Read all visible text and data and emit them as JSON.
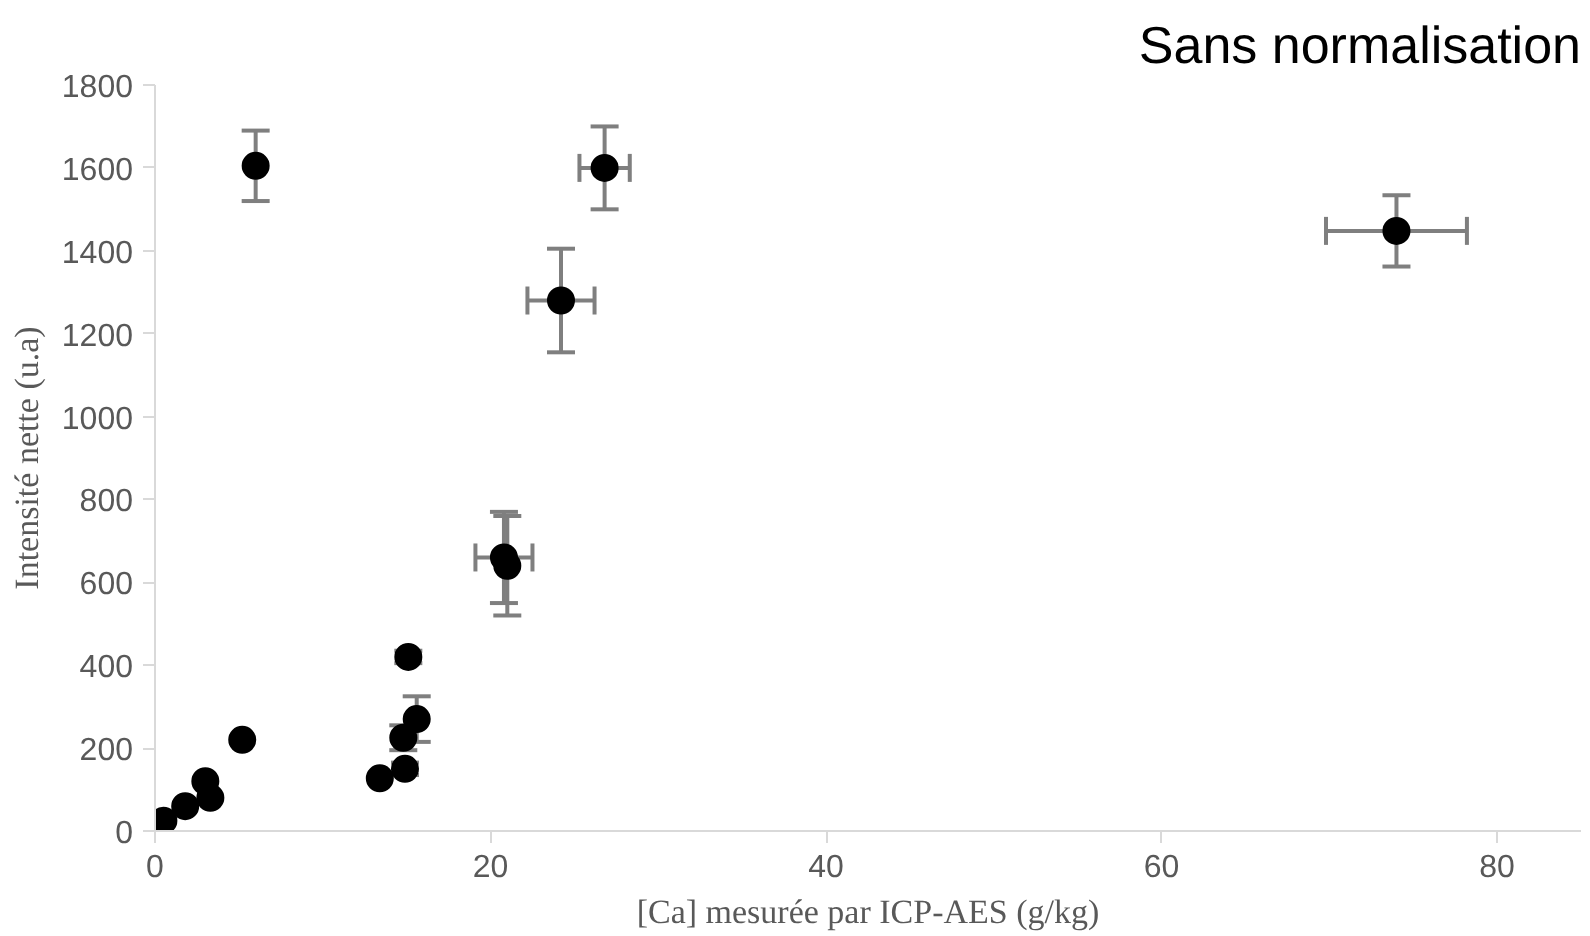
{
  "chart_data": {
    "type": "scatter",
    "title": "Sans normalisation",
    "xlabel": "[Ca] mesurée par ICP-AES (g/kg)",
    "ylabel": "Intensité nette (u.a)",
    "x": [
      0.5,
      1.8,
      3.0,
      3.3,
      5.2,
      13.4,
      14.9,
      14.8,
      15.6,
      15.1,
      20.8,
      21.0,
      24.2,
      26.8,
      6.0,
      74.0
    ],
    "values": [
      25,
      60,
      120,
      80,
      220,
      127,
      150,
      225,
      270,
      420,
      660,
      640,
      1280,
      1600,
      1605,
      1448
    ],
    "errors": [
      null,
      null,
      null,
      null,
      null,
      null,
      15,
      30,
      55,
      15,
      110,
      120,
      125,
      100,
      85,
      86
    ],
    "xerrors": [
      null,
      null,
      null,
      null,
      null,
      null,
      null,
      null,
      null,
      null,
      1.7,
      null,
      2.0,
      1.5,
      null,
      4.2
    ],
    "color": "#000000",
    "marker": "circle",
    "xlim": [
      0,
      85
    ],
    "ylim": [
      0,
      1800
    ],
    "xticks": [
      0,
      20,
      40,
      60,
      80
    ],
    "yticks": [
      0,
      200,
      400,
      600,
      800,
      1000,
      1200,
      1400,
      1600,
      1800
    ],
    "grid": false
  }
}
